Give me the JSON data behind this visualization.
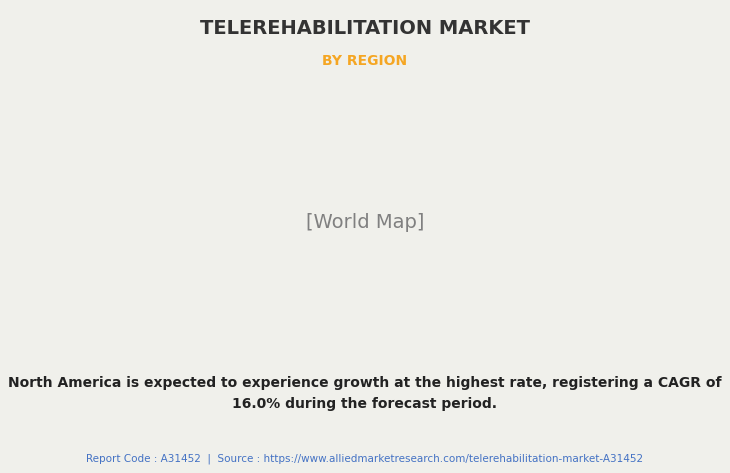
{
  "title": "TELEREHABILITATION MARKET",
  "subtitle": "BY REGION",
  "subtitle_color": "#F5A623",
  "title_color": "#333333",
  "background_color": "#F0F0EB",
  "map_country_color": "#8FBC8F",
  "map_highlight_color": "#E8E8F2",
  "map_border_color": "#5A8A7A",
  "map_shadow_color": "#888888",
  "annotation_text": "North America is expected to experience growth at the highest rate, registering a CAGR of\n16.0% during the forecast period.",
  "annotation_color": "#222222",
  "footer_text": "Report Code : A31452  |  Source : https://www.alliedmarketresearch.com/telerehabilitation-market-A31452",
  "footer_color": "#4472C4",
  "divider_color": "#AAAAAA",
  "title_fontsize": 14,
  "subtitle_fontsize": 10,
  "annotation_fontsize": 10,
  "footer_fontsize": 7.5
}
